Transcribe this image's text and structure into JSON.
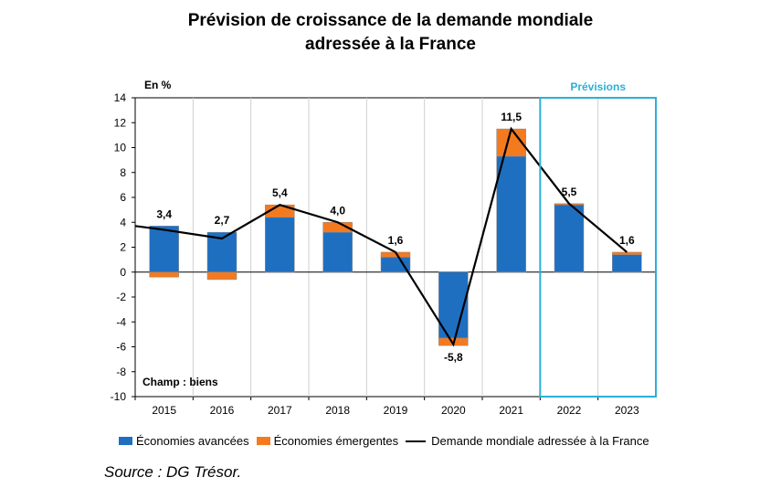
{
  "title_line1": "Prévision de croissance de la demande mondiale",
  "title_line2": "adressée à la France",
  "source": "Source : DG Trésor.",
  "colors": {
    "advanced": "#1F6FC1",
    "emerging": "#F47A20",
    "line": "#000000",
    "forecast_box": "#2BB0D8"
  },
  "chart_data": {
    "type": "bar",
    "ylabel": "En %",
    "annotation": "Champ : biens",
    "forecast_label": "Prévisions",
    "categories": [
      "2015",
      "2016",
      "2017",
      "2018",
      "2019",
      "2020",
      "2021",
      "2022",
      "2023"
    ],
    "ylim": [
      -10,
      14
    ],
    "yticks": [
      -10,
      -8,
      -6,
      -4,
      -2,
      0,
      2,
      4,
      6,
      8,
      10,
      12,
      14
    ],
    "grid": "vertical",
    "legend_position": "bottom",
    "forecast_categories": [
      "2022",
      "2023"
    ],
    "series": [
      {
        "name": "Économies avancées",
        "kind": "bar",
        "values": [
          3.7,
          3.2,
          4.4,
          3.2,
          1.2,
          -5.3,
          9.3,
          5.4,
          1.4
        ]
      },
      {
        "name": "Économies émergentes",
        "kind": "bar",
        "values": [
          -0.4,
          -0.6,
          1.0,
          0.8,
          0.4,
          -0.6,
          2.2,
          0.1,
          0.2
        ]
      },
      {
        "name": "Demande mondiale adressée à la France",
        "kind": "line",
        "values": [
          3.4,
          2.7,
          5.4,
          4.0,
          1.6,
          -5.8,
          11.5,
          5.5,
          1.6
        ]
      }
    ],
    "data_labels": [
      "3,4",
      "2,7",
      "5,4",
      "4,0",
      "1,6",
      "-5,8",
      "11,5",
      "5,5",
      "1,6"
    ]
  }
}
